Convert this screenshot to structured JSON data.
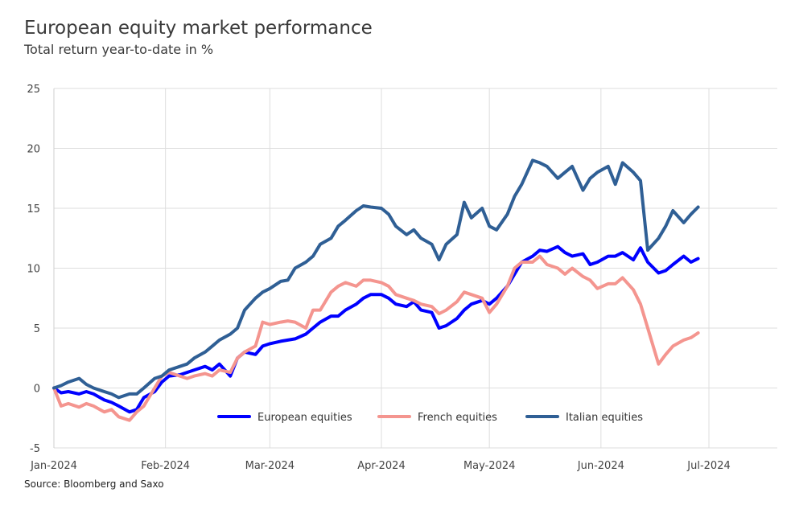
{
  "header": {
    "title": "European equity market performance",
    "subtitle": "Total return year-to-date in %"
  },
  "footer": {
    "source": "Source: Bloomberg and Saxo"
  },
  "chart_data": {
    "type": "line",
    "title": "European equity market performance",
    "subtitle": "Total return year-to-date in %",
    "xlabel": "",
    "ylabel": "",
    "ylim": [
      -5,
      25
    ],
    "yticks": [
      -5,
      0,
      5,
      10,
      15,
      20,
      25
    ],
    "xlim": [
      "2024-01-01",
      "2024-07-20"
    ],
    "xticks": [
      {
        "date": "2024-01-01",
        "label": "Jan-2024"
      },
      {
        "date": "2024-02-01",
        "label": "Feb-2024"
      },
      {
        "date": "2024-03-01",
        "label": "Mar-2024"
      },
      {
        "date": "2024-04-01",
        "label": "Apr-2024"
      },
      {
        "date": "2024-05-01",
        "label": "May-2024"
      },
      {
        "date": "2024-06-01",
        "label": "Jun-2024"
      },
      {
        "date": "2024-07-01",
        "label": "Jul-2024"
      }
    ],
    "grid": true,
    "legend_position": "bottom",
    "series": [
      {
        "name": "European equities",
        "color": "#0000ff",
        "points": [
          [
            "2024-01-01",
            0.0
          ],
          [
            "2024-01-03",
            -0.4
          ],
          [
            "2024-01-05",
            -0.3
          ],
          [
            "2024-01-08",
            -0.5
          ],
          [
            "2024-01-10",
            -0.3
          ],
          [
            "2024-01-12",
            -0.5
          ],
          [
            "2024-01-15",
            -1.0
          ],
          [
            "2024-01-17",
            -1.2
          ],
          [
            "2024-01-19",
            -1.5
          ],
          [
            "2024-01-22",
            -2.0
          ],
          [
            "2024-01-24",
            -1.8
          ],
          [
            "2024-01-26",
            -0.8
          ],
          [
            "2024-01-29",
            -0.3
          ],
          [
            "2024-01-31",
            0.5
          ],
          [
            "2024-02-02",
            1.0
          ],
          [
            "2024-02-05",
            1.1
          ],
          [
            "2024-02-07",
            1.3
          ],
          [
            "2024-02-09",
            1.5
          ],
          [
            "2024-02-12",
            1.8
          ],
          [
            "2024-02-14",
            1.5
          ],
          [
            "2024-02-16",
            2.0
          ],
          [
            "2024-02-19",
            1.0
          ],
          [
            "2024-02-21",
            2.5
          ],
          [
            "2024-02-23",
            3.0
          ],
          [
            "2024-02-26",
            2.8
          ],
          [
            "2024-02-28",
            3.5
          ],
          [
            "2024-03-01",
            3.7
          ],
          [
            "2024-03-04",
            3.9
          ],
          [
            "2024-03-06",
            4.0
          ],
          [
            "2024-03-08",
            4.1
          ],
          [
            "2024-03-11",
            4.5
          ],
          [
            "2024-03-13",
            5.0
          ],
          [
            "2024-03-15",
            5.5
          ],
          [
            "2024-03-18",
            6.0
          ],
          [
            "2024-03-20",
            6.0
          ],
          [
            "2024-03-22",
            6.5
          ],
          [
            "2024-03-25",
            7.0
          ],
          [
            "2024-03-27",
            7.5
          ],
          [
            "2024-03-29",
            7.8
          ],
          [
            "2024-04-01",
            7.8
          ],
          [
            "2024-04-03",
            7.5
          ],
          [
            "2024-04-05",
            7.0
          ],
          [
            "2024-04-08",
            6.8
          ],
          [
            "2024-04-10",
            7.2
          ],
          [
            "2024-04-12",
            6.5
          ],
          [
            "2024-04-15",
            6.3
          ],
          [
            "2024-04-17",
            5.0
          ],
          [
            "2024-04-19",
            5.2
          ],
          [
            "2024-04-22",
            5.8
          ],
          [
            "2024-04-24",
            6.5
          ],
          [
            "2024-04-26",
            7.0
          ],
          [
            "2024-04-29",
            7.3
          ],
          [
            "2024-05-01",
            7.0
          ],
          [
            "2024-05-03",
            7.5
          ],
          [
            "2024-05-06",
            8.5
          ],
          [
            "2024-05-08",
            9.5
          ],
          [
            "2024-05-10",
            10.5
          ],
          [
            "2024-05-13",
            11.0
          ],
          [
            "2024-05-15",
            11.5
          ],
          [
            "2024-05-17",
            11.4
          ],
          [
            "2024-05-20",
            11.8
          ],
          [
            "2024-05-22",
            11.3
          ],
          [
            "2024-05-24",
            11.0
          ],
          [
            "2024-05-27",
            11.2
          ],
          [
            "2024-05-29",
            10.3
          ],
          [
            "2024-05-31",
            10.5
          ],
          [
            "2024-06-03",
            11.0
          ],
          [
            "2024-06-05",
            11.0
          ],
          [
            "2024-06-07",
            11.3
          ],
          [
            "2024-06-10",
            10.7
          ],
          [
            "2024-06-12",
            11.7
          ],
          [
            "2024-06-14",
            10.5
          ],
          [
            "2024-06-17",
            9.6
          ],
          [
            "2024-06-19",
            9.8
          ],
          [
            "2024-06-21",
            10.3
          ],
          [
            "2024-06-24",
            11.0
          ],
          [
            "2024-06-26",
            10.5
          ],
          [
            "2024-06-28",
            10.8
          ]
        ]
      },
      {
        "name": "French equities",
        "color": "#f4958f",
        "points": [
          [
            "2024-01-01",
            0.0
          ],
          [
            "2024-01-03",
            -1.5
          ],
          [
            "2024-01-05",
            -1.3
          ],
          [
            "2024-01-08",
            -1.6
          ],
          [
            "2024-01-10",
            -1.3
          ],
          [
            "2024-01-12",
            -1.5
          ],
          [
            "2024-01-15",
            -2.0
          ],
          [
            "2024-01-17",
            -1.8
          ],
          [
            "2024-01-19",
            -2.4
          ],
          [
            "2024-01-22",
            -2.7
          ],
          [
            "2024-01-24",
            -2.0
          ],
          [
            "2024-01-26",
            -1.5
          ],
          [
            "2024-01-29",
            0.0
          ],
          [
            "2024-01-31",
            1.0
          ],
          [
            "2024-02-02",
            1.3
          ],
          [
            "2024-02-05",
            1.0
          ],
          [
            "2024-02-07",
            0.8
          ],
          [
            "2024-02-09",
            1.0
          ],
          [
            "2024-02-12",
            1.2
          ],
          [
            "2024-02-14",
            1.0
          ],
          [
            "2024-02-16",
            1.5
          ],
          [
            "2024-02-19",
            1.3
          ],
          [
            "2024-02-21",
            2.5
          ],
          [
            "2024-02-23",
            3.0
          ],
          [
            "2024-02-26",
            3.5
          ],
          [
            "2024-02-28",
            5.5
          ],
          [
            "2024-03-01",
            5.3
          ],
          [
            "2024-03-04",
            5.5
          ],
          [
            "2024-03-06",
            5.6
          ],
          [
            "2024-03-08",
            5.5
          ],
          [
            "2024-03-11",
            5.0
          ],
          [
            "2024-03-13",
            6.5
          ],
          [
            "2024-03-15",
            6.5
          ],
          [
            "2024-03-18",
            8.0
          ],
          [
            "2024-03-20",
            8.5
          ],
          [
            "2024-03-22",
            8.8
          ],
          [
            "2024-03-25",
            8.5
          ],
          [
            "2024-03-27",
            9.0
          ],
          [
            "2024-03-29",
            9.0
          ],
          [
            "2024-04-01",
            8.8
          ],
          [
            "2024-04-03",
            8.5
          ],
          [
            "2024-04-05",
            7.8
          ],
          [
            "2024-04-08",
            7.5
          ],
          [
            "2024-04-10",
            7.3
          ],
          [
            "2024-04-12",
            7.0
          ],
          [
            "2024-04-15",
            6.8
          ],
          [
            "2024-04-17",
            6.2
          ],
          [
            "2024-04-19",
            6.5
          ],
          [
            "2024-04-22",
            7.2
          ],
          [
            "2024-04-24",
            8.0
          ],
          [
            "2024-04-26",
            7.8
          ],
          [
            "2024-04-29",
            7.5
          ],
          [
            "2024-05-01",
            6.3
          ],
          [
            "2024-05-03",
            7.0
          ],
          [
            "2024-05-06",
            8.5
          ],
          [
            "2024-05-08",
            10.0
          ],
          [
            "2024-05-10",
            10.5
          ],
          [
            "2024-05-13",
            10.5
          ],
          [
            "2024-05-15",
            11.0
          ],
          [
            "2024-05-17",
            10.3
          ],
          [
            "2024-05-20",
            10.0
          ],
          [
            "2024-05-22",
            9.5
          ],
          [
            "2024-05-24",
            10.0
          ],
          [
            "2024-05-27",
            9.3
          ],
          [
            "2024-05-29",
            9.0
          ],
          [
            "2024-05-31",
            8.3
          ],
          [
            "2024-06-03",
            8.7
          ],
          [
            "2024-06-05",
            8.7
          ],
          [
            "2024-06-07",
            9.2
          ],
          [
            "2024-06-10",
            8.2
          ],
          [
            "2024-06-12",
            7.0
          ],
          [
            "2024-06-14",
            5.0
          ],
          [
            "2024-06-17",
            2.0
          ],
          [
            "2024-06-19",
            2.8
          ],
          [
            "2024-06-21",
            3.5
          ],
          [
            "2024-06-24",
            4.0
          ],
          [
            "2024-06-26",
            4.2
          ],
          [
            "2024-06-28",
            4.6
          ]
        ]
      },
      {
        "name": "Italian equities",
        "color": "#2f5f95",
        "points": [
          [
            "2024-01-01",
            0.0
          ],
          [
            "2024-01-03",
            0.2
          ],
          [
            "2024-01-05",
            0.5
          ],
          [
            "2024-01-08",
            0.8
          ],
          [
            "2024-01-10",
            0.3
          ],
          [
            "2024-01-12",
            0.0
          ],
          [
            "2024-01-15",
            -0.3
          ],
          [
            "2024-01-17",
            -0.5
          ],
          [
            "2024-01-19",
            -0.8
          ],
          [
            "2024-01-22",
            -0.5
          ],
          [
            "2024-01-24",
            -0.5
          ],
          [
            "2024-01-26",
            0.0
          ],
          [
            "2024-01-29",
            0.8
          ],
          [
            "2024-01-31",
            1.0
          ],
          [
            "2024-02-02",
            1.5
          ],
          [
            "2024-02-05",
            1.8
          ],
          [
            "2024-02-07",
            2.0
          ],
          [
            "2024-02-09",
            2.5
          ],
          [
            "2024-02-12",
            3.0
          ],
          [
            "2024-02-14",
            3.5
          ],
          [
            "2024-02-16",
            4.0
          ],
          [
            "2024-02-19",
            4.5
          ],
          [
            "2024-02-21",
            5.0
          ],
          [
            "2024-02-23",
            6.5
          ],
          [
            "2024-02-26",
            7.5
          ],
          [
            "2024-02-28",
            8.0
          ],
          [
            "2024-03-01",
            8.3
          ],
          [
            "2024-03-04",
            8.9
          ],
          [
            "2024-03-06",
            9.0
          ],
          [
            "2024-03-08",
            10.0
          ],
          [
            "2024-03-11",
            10.5
          ],
          [
            "2024-03-13",
            11.0
          ],
          [
            "2024-03-15",
            12.0
          ],
          [
            "2024-03-18",
            12.5
          ],
          [
            "2024-03-20",
            13.5
          ],
          [
            "2024-03-22",
            14.0
          ],
          [
            "2024-03-25",
            14.8
          ],
          [
            "2024-03-27",
            15.2
          ],
          [
            "2024-03-29",
            15.1
          ],
          [
            "2024-04-01",
            15.0
          ],
          [
            "2024-04-03",
            14.5
          ],
          [
            "2024-04-05",
            13.5
          ],
          [
            "2024-04-08",
            12.8
          ],
          [
            "2024-04-10",
            13.2
          ],
          [
            "2024-04-12",
            12.5
          ],
          [
            "2024-04-15",
            12.0
          ],
          [
            "2024-04-17",
            10.7
          ],
          [
            "2024-04-19",
            12.0
          ],
          [
            "2024-04-22",
            12.8
          ],
          [
            "2024-04-24",
            15.5
          ],
          [
            "2024-04-26",
            14.2
          ],
          [
            "2024-04-29",
            15.0
          ],
          [
            "2024-05-01",
            13.5
          ],
          [
            "2024-05-03",
            13.2
          ],
          [
            "2024-05-06",
            14.5
          ],
          [
            "2024-05-08",
            16.0
          ],
          [
            "2024-05-10",
            17.0
          ],
          [
            "2024-05-13",
            19.0
          ],
          [
            "2024-05-15",
            18.8
          ],
          [
            "2024-05-17",
            18.5
          ],
          [
            "2024-05-20",
            17.5
          ],
          [
            "2024-05-22",
            18.0
          ],
          [
            "2024-05-24",
            18.5
          ],
          [
            "2024-05-27",
            16.5
          ],
          [
            "2024-05-29",
            17.5
          ],
          [
            "2024-05-31",
            18.0
          ],
          [
            "2024-06-03",
            18.5
          ],
          [
            "2024-06-05",
            17.0
          ],
          [
            "2024-06-07",
            18.8
          ],
          [
            "2024-06-10",
            18.0
          ],
          [
            "2024-06-12",
            17.3
          ],
          [
            "2024-06-14",
            11.5
          ],
          [
            "2024-06-17",
            12.5
          ],
          [
            "2024-06-19",
            13.5
          ],
          [
            "2024-06-21",
            14.8
          ],
          [
            "2024-06-24",
            13.8
          ],
          [
            "2024-06-26",
            14.5
          ],
          [
            "2024-06-28",
            15.1
          ]
        ]
      }
    ]
  }
}
